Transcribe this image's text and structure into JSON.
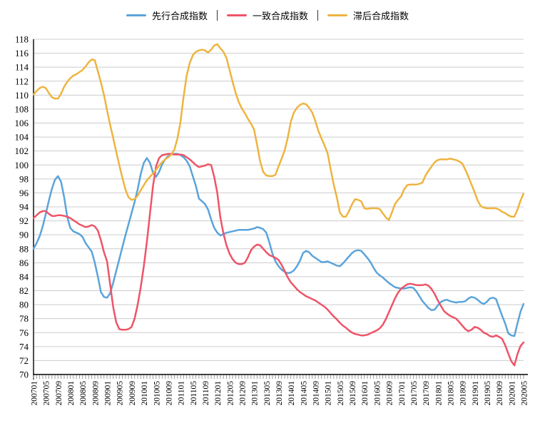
{
  "legend": {
    "items": [
      {
        "label": "先行合成指数",
        "color": "#5BA4DA"
      },
      {
        "label": "一致合成指数",
        "color": "#EE5467"
      },
      {
        "label": "滞后合成指数",
        "color": "#EEB440"
      }
    ]
  },
  "colors": {
    "background": "#FFFFFF",
    "grid": "#CCCCCC",
    "axis": "#000000",
    "tick": "#999999",
    "label": "#000000"
  },
  "chart_data": {
    "type": "line",
    "title": "",
    "xlabel": "",
    "ylabel": "",
    "ylim": [
      70,
      118
    ],
    "y_step": 2,
    "grid": true,
    "legend_position": "top",
    "x_tick_label_every": 4,
    "x": [
      "200701",
      "200702",
      "200703",
      "200704",
      "200705",
      "200706",
      "200707",
      "200708",
      "200709",
      "200710",
      "200711",
      "200712",
      "200801",
      "200802",
      "200803",
      "200804",
      "200805",
      "200806",
      "200807",
      "200808",
      "200809",
      "200810",
      "200811",
      "200812",
      "200901",
      "200902",
      "200903",
      "200904",
      "200905",
      "200906",
      "200907",
      "200908",
      "200909",
      "200910",
      "200911",
      "200912",
      "201001",
      "201002",
      "201003",
      "201004",
      "201005",
      "201006",
      "201007",
      "201008",
      "201009",
      "201010",
      "201011",
      "201012",
      "201101",
      "201102",
      "201103",
      "201104",
      "201105",
      "201106",
      "201107",
      "201108",
      "201109",
      "201110",
      "201111",
      "201112",
      "201201",
      "201202",
      "201203",
      "201204",
      "201205",
      "201206",
      "201207",
      "201208",
      "201209",
      "201210",
      "201211",
      "201212",
      "201301",
      "201302",
      "201303",
      "201304",
      "201305",
      "201306",
      "201307",
      "201308",
      "201309",
      "201310",
      "201311",
      "201312",
      "201401",
      "201402",
      "201403",
      "201404",
      "201405",
      "201406",
      "201407",
      "201408",
      "201409",
      "201410",
      "201411",
      "201412",
      "201501",
      "201502",
      "201503",
      "201504",
      "201505",
      "201506",
      "201507",
      "201508",
      "201509",
      "201510",
      "201511",
      "201512",
      "201601",
      "201602",
      "201603",
      "201604",
      "201605",
      "201606",
      "201607",
      "201608",
      "201609",
      "201610",
      "201611",
      "201612",
      "201701",
      "201702",
      "201703",
      "201704",
      "201705",
      "201706",
      "201707",
      "201708",
      "201709",
      "201710",
      "201711",
      "201712",
      "201801",
      "201802",
      "201803",
      "201804",
      "201805",
      "201806",
      "201807",
      "201808",
      "201809",
      "201810",
      "201811",
      "201812",
      "201901",
      "201902",
      "201903",
      "201904",
      "201905",
      "201906",
      "201907",
      "201908",
      "201909",
      "201910",
      "201911",
      "201912",
      "202001",
      "202002",
      "202003",
      "202004",
      "202005"
    ],
    "series": [
      {
        "name": "先行合成指数",
        "color": "#5BA4DA",
        "values": [
          88.0,
          88.8,
          89.8,
          91.2,
          93.0,
          94.9,
          96.6,
          97.9,
          98.4,
          97.6,
          95.4,
          92.6,
          91.0,
          90.5,
          90.3,
          90.1,
          89.7,
          88.8,
          88.2,
          87.6,
          86.0,
          84.0,
          81.8,
          81.1,
          81.0,
          81.6,
          83.1,
          84.8,
          86.5,
          88.2,
          89.9,
          91.5,
          93.1,
          94.7,
          96.5,
          98.7,
          100.3,
          101.0,
          100.3,
          98.9,
          98.3,
          99.0,
          100.1,
          100.8,
          101.3,
          101.5,
          101.6,
          101.6,
          101.4,
          101.1,
          100.6,
          99.8,
          98.4,
          97.0,
          95.2,
          94.8,
          94.4,
          93.6,
          92.2,
          91.0,
          90.3,
          89.9,
          90.1,
          90.3,
          90.4,
          90.5,
          90.6,
          90.7,
          90.7,
          90.7,
          90.7,
          90.8,
          90.9,
          91.1,
          91.0,
          90.8,
          90.3,
          88.9,
          87.3,
          86.2,
          85.5,
          85.0,
          84.7,
          84.5,
          84.6,
          84.9,
          85.5,
          86.3,
          87.4,
          87.7,
          87.5,
          87.0,
          86.7,
          86.4,
          86.1,
          86.1,
          86.2,
          86.0,
          85.8,
          85.6,
          85.5,
          85.9,
          86.4,
          86.9,
          87.4,
          87.7,
          87.8,
          87.7,
          87.2,
          86.7,
          86.1,
          85.3,
          84.6,
          84.2,
          83.9,
          83.5,
          83.1,
          82.8,
          82.5,
          82.4,
          82.3,
          82.3,
          82.4,
          82.5,
          82.4,
          81.9,
          81.2,
          80.5,
          80.0,
          79.5,
          79.2,
          79.3,
          79.9,
          80.4,
          80.6,
          80.7,
          80.5,
          80.4,
          80.3,
          80.4,
          80.4,
          80.5,
          80.9,
          81.1,
          81.0,
          80.7,
          80.3,
          80.1,
          80.4,
          80.9,
          81.0,
          80.8,
          79.6,
          78.4,
          77.3,
          75.9,
          75.6,
          75.5,
          77.3,
          79.0,
          80.1
        ]
      },
      {
        "name": "一致合成指数",
        "color": "#EE5467",
        "values": [
          92.4,
          92.8,
          93.2,
          93.4,
          93.4,
          93.0,
          92.7,
          92.7,
          92.8,
          92.8,
          92.7,
          92.6,
          92.4,
          92.1,
          91.8,
          91.5,
          91.3,
          91.1,
          91.2,
          91.4,
          91.2,
          90.6,
          89.2,
          87.5,
          86.2,
          83.0,
          79.7,
          77.5,
          76.5,
          76.4,
          76.4,
          76.5,
          76.8,
          78.0,
          80.0,
          82.5,
          85.5,
          89.0,
          93.0,
          97.0,
          99.8,
          101.0,
          101.4,
          101.5,
          101.6,
          101.6,
          101.5,
          101.5,
          101.5,
          101.4,
          101.1,
          100.8,
          100.4,
          100.0,
          99.7,
          99.8,
          99.9,
          100.1,
          100.0,
          98.3,
          96.0,
          92.5,
          90.2,
          88.5,
          87.3,
          86.5,
          86.0,
          85.8,
          85.8,
          86.0,
          86.8,
          87.8,
          88.3,
          88.6,
          88.5,
          88.0,
          87.5,
          87.1,
          86.9,
          86.7,
          86.4,
          85.7,
          84.8,
          83.9,
          83.2,
          82.7,
          82.2,
          81.8,
          81.5,
          81.2,
          81.0,
          80.8,
          80.6,
          80.3,
          80.0,
          79.7,
          79.3,
          78.8,
          78.3,
          77.9,
          77.4,
          77.0,
          76.7,
          76.3,
          76.0,
          75.8,
          75.7,
          75.6,
          75.6,
          75.7,
          75.9,
          76.1,
          76.3,
          76.6,
          77.1,
          77.9,
          78.9,
          79.9,
          80.9,
          81.7,
          82.3,
          82.6,
          82.9,
          83.0,
          82.9,
          82.8,
          82.8,
          82.8,
          82.9,
          82.7,
          82.2,
          81.5,
          80.6,
          79.8,
          79.1,
          78.7,
          78.4,
          78.2,
          78.0,
          77.5,
          77.0,
          76.5,
          76.2,
          76.4,
          76.8,
          76.7,
          76.4,
          76.0,
          75.8,
          75.5,
          75.4,
          75.6,
          75.4,
          75.1,
          74.2,
          73.0,
          71.9,
          71.3,
          72.9,
          74.1,
          74.6
        ]
      },
      {
        "name": "滞后合成指数",
        "color": "#EEB440",
        "values": [
          110.1,
          110.6,
          111.0,
          111.2,
          111.0,
          110.3,
          109.7,
          109.5,
          109.5,
          110.2,
          111.2,
          111.9,
          112.4,
          112.8,
          113.0,
          113.3,
          113.6,
          114.1,
          114.7,
          115.1,
          115.0,
          113.4,
          111.8,
          110.0,
          107.8,
          105.8,
          103.9,
          101.9,
          100.0,
          98.2,
          96.5,
          95.4,
          95.0,
          95.1,
          95.6,
          96.4,
          97.1,
          97.8,
          98.3,
          98.8,
          99.3,
          99.9,
          100.4,
          100.8,
          101.1,
          101.5,
          102.2,
          103.8,
          106.2,
          109.8,
          112.8,
          114.6,
          115.7,
          116.2,
          116.4,
          116.5,
          116.4,
          116.1,
          116.5,
          117.1,
          117.3,
          116.7,
          116.2,
          115.3,
          113.6,
          111.9,
          110.3,
          109.0,
          108.1,
          107.4,
          106.6,
          105.9,
          105.1,
          102.9,
          100.5,
          99.0,
          98.5,
          98.4,
          98.4,
          98.6,
          99.8,
          100.9,
          102.1,
          103.9,
          106.2,
          107.5,
          108.2,
          108.6,
          108.8,
          108.7,
          108.2,
          107.5,
          106.3,
          104.9,
          103.8,
          102.8,
          101.7,
          99.4,
          97.2,
          95.4,
          93.2,
          92.6,
          92.6,
          93.4,
          94.4,
          95.1,
          95.0,
          94.8,
          93.8,
          93.7,
          93.8,
          93.8,
          93.8,
          93.7,
          93.1,
          92.5,
          92.1,
          93.2,
          94.4,
          95.0,
          95.5,
          96.5,
          97.1,
          97.2,
          97.2,
          97.2,
          97.3,
          97.5,
          98.5,
          99.2,
          99.8,
          100.4,
          100.7,
          100.8,
          100.8,
          100.8,
          100.9,
          100.8,
          100.7,
          100.5,
          100.2,
          99.3,
          98.3,
          97.2,
          96.1,
          94.9,
          94.1,
          93.9,
          93.8,
          93.8,
          93.8,
          93.8,
          93.6,
          93.3,
          93.1,
          92.8,
          92.6,
          92.6,
          93.6,
          94.9,
          95.9
        ]
      }
    ]
  }
}
